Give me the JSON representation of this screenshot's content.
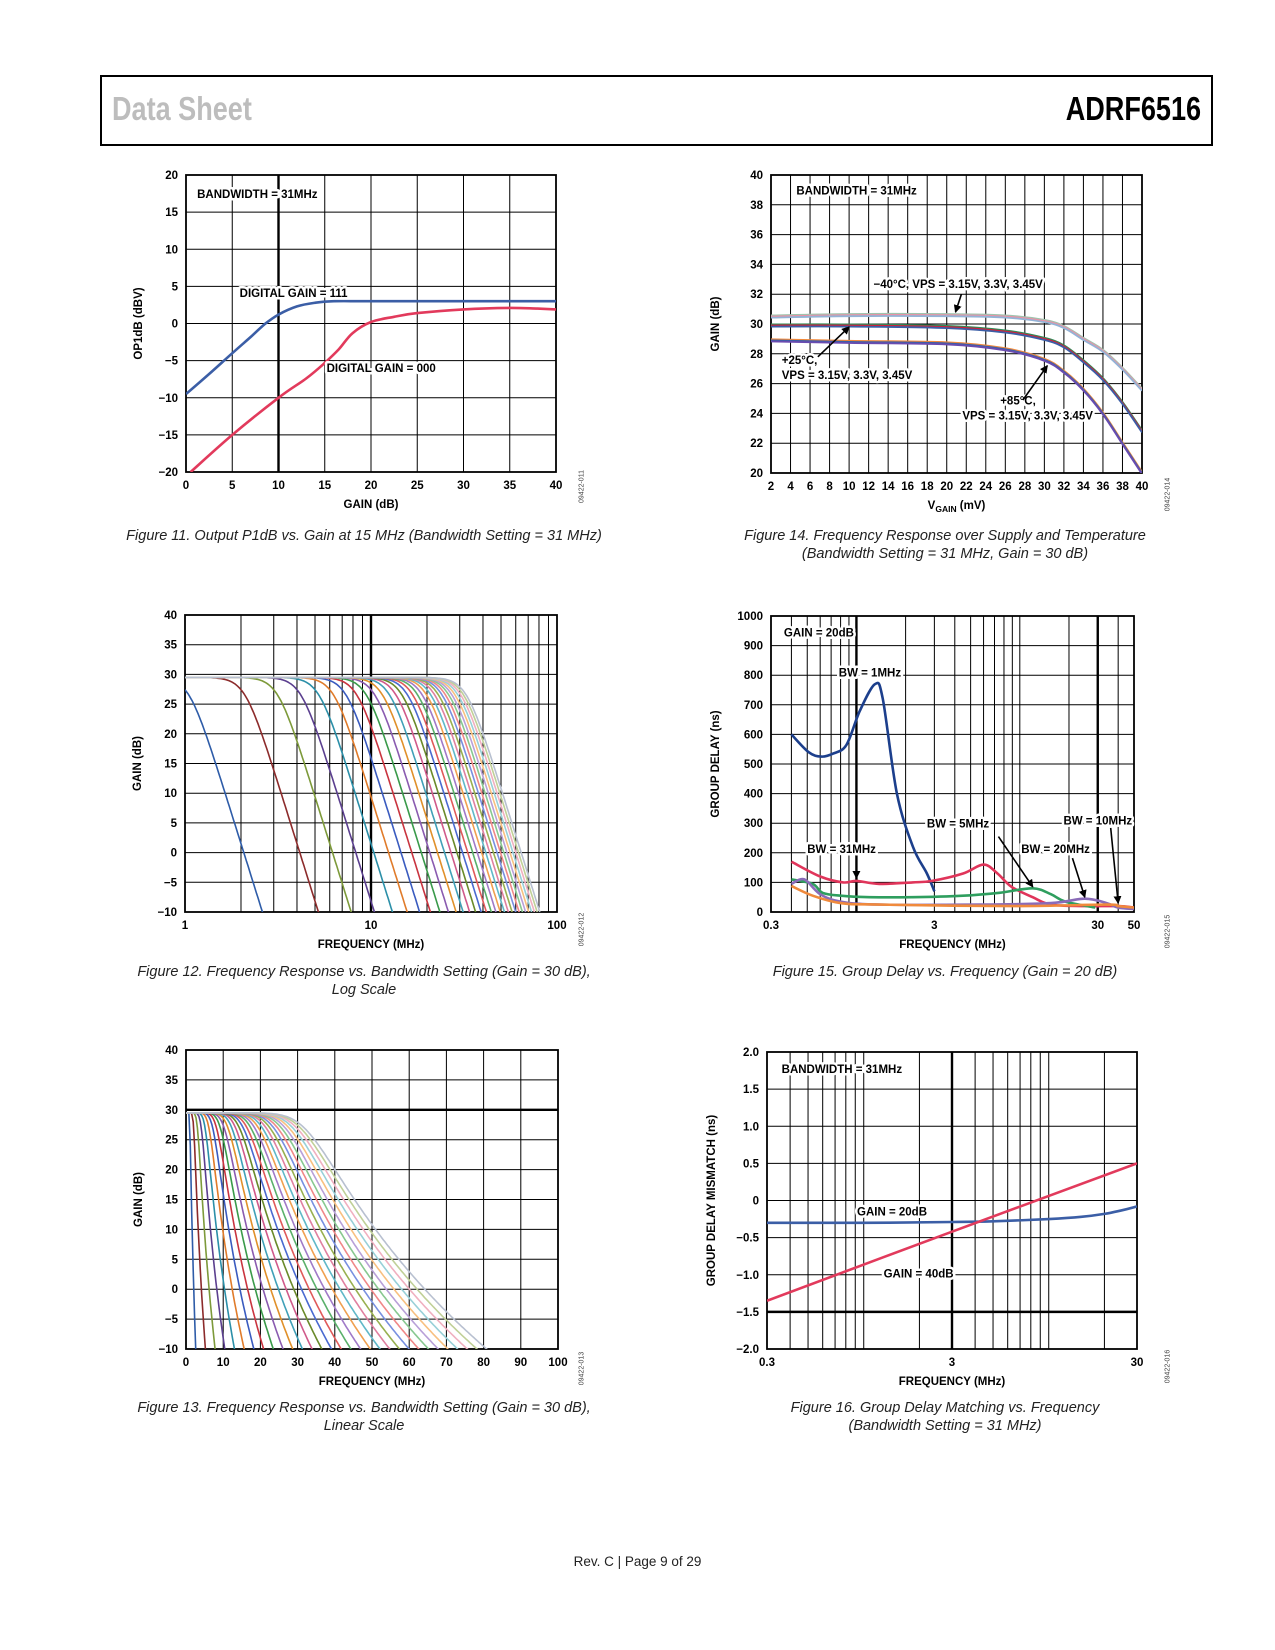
{
  "header": {
    "left": "Data Sheet",
    "right": "ADRF6516"
  },
  "footer": {
    "page": "Rev. C | Page 9 of 29"
  },
  "chart_data": [
    {
      "type": "line",
      "title_lines": [
        "Figure 11. Output P1dB vs. Gain at 15 MHz (Bandwidth Setting = 31 MHz)"
      ],
      "figure_code": "09422-011",
      "xlabel": "GAIN (dB)",
      "ylabel": "OP1dB (dBV)",
      "xscale": "linear",
      "xlim": [
        0,
        40
      ],
      "ylim": [
        -20,
        20
      ],
      "xticks": [
        0,
        5,
        10,
        15,
        20,
        25,
        30,
        35,
        40
      ],
      "xtick_labels": [
        "0",
        "5",
        "10",
        "15",
        "20",
        "25",
        "30",
        "35",
        "40"
      ],
      "yticks": [
        -20,
        -15,
        -10,
        -5,
        0,
        5,
        10,
        15,
        20
      ],
      "ytick_labels": [
        "−20",
        "−15",
        "−10",
        "−5",
        "0",
        "5",
        "10",
        "15",
        "20"
      ],
      "grid": true,
      "series": [
        {
          "name": "DIGITAL GAIN = 111",
          "color": "#3b5ea6",
          "points": [
            [
              0,
              -9.5
            ],
            [
              2.5,
              -6.8
            ],
            [
              5,
              -4
            ],
            [
              7,
              -1.8
            ],
            [
              8.5,
              -0.1
            ],
            [
              10,
              1.2
            ],
            [
              12,
              2.3
            ],
            [
              14,
              2.8
            ],
            [
              16,
              3.0
            ],
            [
              20,
              3.0
            ],
            [
              30,
              3.0
            ],
            [
              40,
              3.0
            ]
          ]
        },
        {
          "name": "DIGITAL GAIN = 000",
          "color": "#e23a5c",
          "points": [
            [
              0.5,
              -20
            ],
            [
              5,
              -15
            ],
            [
              10,
              -10
            ],
            [
              13,
              -7.4
            ],
            [
              15,
              -5.3
            ],
            [
              16.5,
              -3.5
            ],
            [
              18,
              -1.3
            ],
            [
              20,
              0.2
            ],
            [
              22.5,
              0.9
            ],
            [
              25,
              1.4
            ],
            [
              30,
              1.9
            ],
            [
              35,
              2.1
            ],
            [
              38,
              2.0
            ],
            [
              40,
              1.9
            ]
          ]
        }
      ],
      "annotations": [
        {
          "text": "BANDWIDTH = 31MHz"
        },
        {
          "text": "DIGITAL GAIN = 111"
        },
        {
          "text": "DIGITAL GAIN = 000"
        }
      ]
    },
    {
      "type": "line",
      "title_lines": [
        "Figure 14. Frequency Response over Supply and Temperature",
        "(Bandwidth Setting = 31 MHz, Gain = 30 dB)"
      ],
      "figure_code": "09422-014",
      "xlabel_parts": [
        "V",
        "GAIN",
        " (mV)"
      ],
      "ylabel": "GAIN (dB)",
      "xscale": "linear",
      "xlim": [
        2,
        40
      ],
      "ylim": [
        20,
        40
      ],
      "xticks": [
        2,
        4,
        6,
        8,
        10,
        12,
        14,
        16,
        18,
        20,
        22,
        24,
        26,
        28,
        30,
        32,
        34,
        36,
        38,
        40
      ],
      "xtick_labels": [
        "2",
        "4",
        "6",
        "8",
        "10",
        "12",
        "14",
        "16",
        "18",
        "20",
        "22",
        "24",
        "26",
        "28",
        "30",
        "32",
        "34",
        "36",
        "38",
        "40"
      ],
      "yticks": [
        20,
        22,
        24,
        26,
        28,
        30,
        32,
        34,
        36,
        38,
        40
      ],
      "ytick_labels": [
        "20",
        "22",
        "24",
        "26",
        "28",
        "30",
        "32",
        "34",
        "36",
        "38",
        "40"
      ],
      "grid": true,
      "series": [
        {
          "name": "−40°C, VPS = 3.15V, 3.3V, 3.45V",
          "traces": [
            "#9fc4ae",
            "#e992a6",
            "#93b3d6"
          ],
          "points": [
            [
              2,
              30.5
            ],
            [
              10,
              30.6
            ],
            [
              20,
              30.6
            ],
            [
              26,
              30.5
            ],
            [
              30,
              30.2
            ],
            [
              32,
              29.8
            ],
            [
              34,
              29.0
            ],
            [
              36,
              28.2
            ],
            [
              38,
              27.0
            ],
            [
              40,
              25.6
            ]
          ]
        },
        {
          "name": "+25°C, VPS = 3.15V, 3.3V, 3.45V",
          "traces": [
            "#2e8b57",
            "#d0203a",
            "#3b5ea6"
          ],
          "points": [
            [
              2,
              29.9
            ],
            [
              10,
              29.9
            ],
            [
              20,
              29.8
            ],
            [
              26,
              29.5
            ],
            [
              30,
              29.0
            ],
            [
              32,
              28.5
            ],
            [
              34,
              27.5
            ],
            [
              36,
              26.3
            ],
            [
              38,
              24.7
            ],
            [
              40,
              22.8
            ]
          ]
        },
        {
          "name": "+85°C, VPS = 3.15V, 3.3V, 3.45V",
          "traces": [
            "#f08a3c",
            "#3b5ea6",
            "#6a4bb0"
          ],
          "points": [
            [
              2,
              28.9
            ],
            [
              10,
              28.8
            ],
            [
              20,
              28.7
            ],
            [
              26,
              28.3
            ],
            [
              30,
              27.6
            ],
            [
              32,
              26.8
            ],
            [
              34,
              25.6
            ],
            [
              36,
              24.0
            ],
            [
              38,
              22.0
            ],
            [
              40,
              20.0
            ]
          ]
        }
      ],
      "annotations": [
        {
          "text": "BANDWIDTH = 31MHz"
        },
        {
          "text": "−40°C, VPS = 3.15V, 3.3V, 3.45V"
        },
        {
          "text": "+25°C,"
        },
        {
          "text": "VPS = 3.15V, 3.3V, 3.45V"
        },
        {
          "text": "+85°C,"
        },
        {
          "text": "VPS = 3.15V, 3.3V, 3.45V"
        }
      ]
    },
    {
      "type": "line",
      "title_lines": [
        "Figure 12. Frequency Response vs. Bandwidth Setting (Gain = 30 dB),",
        "Log Scale"
      ],
      "figure_code": "09422-012",
      "xlabel": "FREQUENCY (MHz)",
      "ylabel": "GAIN (dB)",
      "xscale": "log",
      "xlim": [
        1,
        100
      ],
      "ylim": [
        -10,
        40
      ],
      "xticks": [
        1,
        10,
        100
      ],
      "xtick_labels": [
        "1",
        "10",
        "100"
      ],
      "xgrid": [
        1,
        2,
        3,
        4,
        5,
        6,
        7,
        8,
        9,
        10,
        20,
        30,
        40,
        50,
        60,
        70,
        80,
        90,
        100
      ],
      "yticks": [
        -10,
        -5,
        0,
        5,
        10,
        15,
        20,
        25,
        30,
        35,
        40
      ],
      "ytick_labels": [
        "−10",
        "−5",
        "0",
        "5",
        "10",
        "15",
        "20",
        "25",
        "30",
        "35",
        "40"
      ],
      "grid": true,
      "series_family": {
        "bandwidths_mhz": [
          1,
          2,
          3,
          4,
          5,
          6,
          7,
          8,
          9,
          10,
          11,
          12,
          13,
          14,
          15,
          16,
          17,
          18,
          19,
          20,
          21,
          22,
          23,
          24,
          25,
          26,
          27,
          28,
          29,
          30,
          31
        ],
        "passband_gain_db": 29.5
      },
      "annotations": []
    },
    {
      "type": "line",
      "title_lines": [
        "Figure 15. Group Delay vs. Frequency (Gain = 20 dB)"
      ],
      "figure_code": "09422-015",
      "xlabel": "FREQUENCY (MHz)",
      "ylabel": "GROUP DELAY (ns)",
      "xscale": "log",
      "xlim": [
        0.3,
        50
      ],
      "ylim": [
        0,
        1000
      ],
      "xticks": [
        0.3,
        3,
        30,
        50
      ],
      "xtick_labels": [
        "0.3",
        "3",
        "30",
        "50"
      ],
      "xgrid": [
        0.3,
        0.4,
        0.5,
        0.6,
        0.7,
        0.8,
        0.9,
        1,
        2,
        3,
        4,
        5,
        6,
        7,
        8,
        9,
        10,
        20,
        30,
        40,
        50
      ],
      "yticks": [
        0,
        100,
        200,
        300,
        400,
        500,
        600,
        700,
        800,
        900,
        1000
      ],
      "ytick_labels": [
        "0",
        "100",
        "200",
        "300",
        "400",
        "500",
        "600",
        "700",
        "800",
        "900",
        "1000"
      ],
      "grid": true,
      "series": [
        {
          "name": "BW = 1MHz",
          "color": "#1c3f8c",
          "points": [
            [
              0.4,
              600
            ],
            [
              0.51,
              540
            ],
            [
              0.61,
              525
            ],
            [
              0.72,
              535
            ],
            [
              0.87,
              565
            ],
            [
              1.05,
              680
            ],
            [
              1.3,
              770
            ],
            [
              1.45,
              720
            ],
            [
              1.77,
              400
            ],
            [
              2.22,
              220
            ],
            [
              2.7,
              130
            ],
            [
              3.0,
              70
            ]
          ]
        },
        {
          "name": "BW = 5MHz",
          "color": "#e0355a",
          "points": [
            [
              0.4,
              170
            ],
            [
              0.6,
              120
            ],
            [
              0.83,
              100
            ],
            [
              1.0,
              105
            ],
            [
              1.38,
              95
            ],
            [
              2.2,
              100
            ],
            [
              2.9,
              105
            ],
            [
              4.5,
              130
            ],
            [
              6.0,
              160
            ],
            [
              7.3,
              130
            ],
            [
              8.9,
              85
            ],
            [
              12,
              50
            ],
            [
              15.5,
              25
            ],
            [
              25,
              20
            ],
            [
              40,
              20
            ],
            [
              50,
              15
            ]
          ]
        },
        {
          "name": "BW = 10MHz",
          "color": "#2e9e5e",
          "points": [
            [
              0.4,
              110
            ],
            [
              0.54,
              95
            ],
            [
              0.62,
              65
            ],
            [
              0.8,
              55
            ],
            [
              1.2,
              50
            ],
            [
              2.2,
              50
            ],
            [
              4.5,
              55
            ],
            [
              7.5,
              65
            ],
            [
              12,
              80
            ],
            [
              15.5,
              60
            ],
            [
              19,
              35
            ],
            [
              29,
              15
            ]
          ]
        },
        {
          "name": "BW = 20MHz",
          "color": "#8a6bb8",
          "points": [
            [
              0.4,
              95
            ],
            [
              0.48,
              110
            ],
            [
              0.6,
              60
            ],
            [
              0.8,
              35
            ],
            [
              1.38,
              25
            ],
            [
              5.7,
              25
            ],
            [
              15.5,
              30
            ],
            [
              25,
              45
            ],
            [
              34,
              30
            ],
            [
              40,
              15
            ],
            [
              50,
              10
            ]
          ]
        },
        {
          "name": "BW = 31MHz",
          "color": "#f08a3c",
          "points": [
            [
              0.4,
              88
            ],
            [
              0.54,
              55
            ],
            [
              0.8,
              30
            ],
            [
              1.38,
              25
            ],
            [
              9.3,
              20
            ],
            [
              34,
              25
            ],
            [
              40,
              20
            ],
            [
              50,
              15
            ]
          ]
        }
      ],
      "annotations": [
        {
          "text": "GAIN = 20dB"
        },
        {
          "text": "BW = 1MHz"
        },
        {
          "text": "BW = 5MHz"
        },
        {
          "text": "BW = 10MHz"
        },
        {
          "text": "BW = 20MHz"
        },
        {
          "text": "BW = 31MHz"
        }
      ]
    },
    {
      "type": "line",
      "title_lines": [
        "Figure 13. Frequency Response vs. Bandwidth Setting (Gain = 30 dB),",
        "Linear Scale"
      ],
      "figure_code": "09422-013",
      "xlabel": "FREQUENCY (MHz)",
      "ylabel": "GAIN (dB)",
      "xscale": "linear",
      "xlim": [
        0,
        100
      ],
      "ylim": [
        -10,
        40
      ],
      "xticks": [
        0,
        10,
        20,
        30,
        40,
        50,
        60,
        70,
        80,
        90,
        100
      ],
      "xtick_labels": [
        "0",
        "10",
        "20",
        "30",
        "40",
        "50",
        "60",
        "70",
        "80",
        "90",
        "100"
      ],
      "yticks": [
        -10,
        -5,
        0,
        5,
        10,
        15,
        20,
        25,
        30,
        35,
        40
      ],
      "ytick_labels": [
        "−10",
        "−5",
        "0",
        "5",
        "10",
        "15",
        "20",
        "25",
        "30",
        "35",
        "40"
      ],
      "grid": true,
      "series_family": {
        "bandwidths_mhz": [
          1,
          2,
          3,
          4,
          5,
          6,
          7,
          8,
          9,
          10,
          11,
          12,
          13,
          14,
          15,
          16,
          17,
          18,
          19,
          20,
          21,
          22,
          23,
          24,
          25,
          26,
          27,
          28,
          29,
          30,
          31
        ],
        "passband_gain_db": 29.5
      },
      "annotations": []
    },
    {
      "type": "line",
      "title_lines": [
        "Figure 16. Group Delay Matching vs. Frequency",
        "(Bandwidth Setting = 31 MHz)"
      ],
      "figure_code": "09422-016",
      "xlabel": "FREQUENCY (MHz)",
      "ylabel": "GROUP DELAY MISMATCH (ns)",
      "xscale": "log",
      "xlim": [
        0.3,
        30
      ],
      "ylim": [
        -2,
        2
      ],
      "xticks": [
        0.3,
        3,
        30
      ],
      "xtick_labels": [
        "0.3",
        "3",
        "30"
      ],
      "xgrid": [
        0.3,
        0.4,
        0.5,
        0.6,
        0.7,
        0.8,
        0.9,
        1,
        2,
        3,
        4,
        5,
        6,
        7,
        8,
        9,
        10,
        20,
        30
      ],
      "yticks": [
        -2,
        -1.5,
        -1,
        -0.5,
        0,
        0.5,
        1,
        1.5,
        2
      ],
      "ytick_labels": [
        "−2.0",
        "−1.5",
        "−1.0",
        "−0.5",
        "0",
        "0.5",
        "1.0",
        "1.5",
        "2.0"
      ],
      "grid": true,
      "series": [
        {
          "name": "GAIN = 20dB",
          "color": "#3b5ea6",
          "points": [
            [
              0.3,
              -0.3
            ],
            [
              1,
              -0.3
            ],
            [
              3,
              -0.29
            ],
            [
              5,
              -0.28
            ],
            [
              10,
              -0.25
            ],
            [
              15,
              -0.22
            ],
            [
              20,
              -0.18
            ],
            [
              25,
              -0.13
            ],
            [
              30,
              -0.08
            ]
          ]
        },
        {
          "name": "GAIN = 40dB",
          "color": "#e23a5c",
          "points": [
            [
              0.3,
              -1.35
            ],
            [
              3,
              -0.42
            ],
            [
              30,
              0.5
            ]
          ]
        }
      ],
      "annotations": [
        {
          "text": "BANDWIDTH = 31MHz"
        },
        {
          "text": "GAIN = 20dB"
        },
        {
          "text": "GAIN = 40dB"
        }
      ]
    }
  ]
}
